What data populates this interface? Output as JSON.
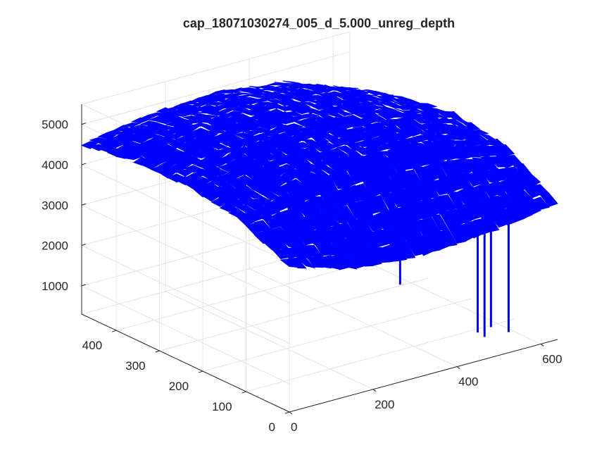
{
  "chart_data": {
    "type": "surface",
    "title": "cap_18071030274_005_d_5.000_unreg_depth",
    "xlabel": "",
    "ylabel": "",
    "zlabel": "",
    "xlim": [
      0,
      640
    ],
    "ylim": [
      0,
      480
    ],
    "zlim": [
      300,
      5500
    ],
    "x_ticks": [
      "0",
      "200",
      "400",
      "600"
    ],
    "y_ticks": [
      "0",
      "100",
      "200",
      "300",
      "400"
    ],
    "z_ticks": [
      "1000",
      "2000",
      "3000",
      "4000",
      "5000"
    ],
    "grid": true,
    "legend": "none",
    "surface_color": "#0000ff",
    "surface_samples": {
      "x": [
        0,
        160,
        320,
        480,
        640
      ],
      "y": [
        0,
        120,
        240,
        360,
        480
      ],
      "z_rows_by_y": [
        [
          3900,
          3400,
          3300,
          3400,
          3700
        ],
        [
          4500,
          4900,
          5000,
          4950,
          4500
        ],
        [
          4700,
          5150,
          5250,
          5150,
          4700
        ],
        [
          4700,
          5100,
          5200,
          5100,
          4500
        ],
        [
          4500,
          4800,
          4900,
          4700,
          4100
        ]
      ]
    },
    "spikes": [
      {
        "x": 318,
        "y": 52,
        "z_bottom": 2300
      },
      {
        "x": 466,
        "y": 16,
        "z_bottom": 880
      },
      {
        "x": 474,
        "y": 8,
        "z_bottom": 790
      },
      {
        "x": 510,
        "y": 28,
        "z_bottom": 830
      },
      {
        "x": 548,
        "y": 24,
        "z_bottom": 620
      }
    ]
  }
}
